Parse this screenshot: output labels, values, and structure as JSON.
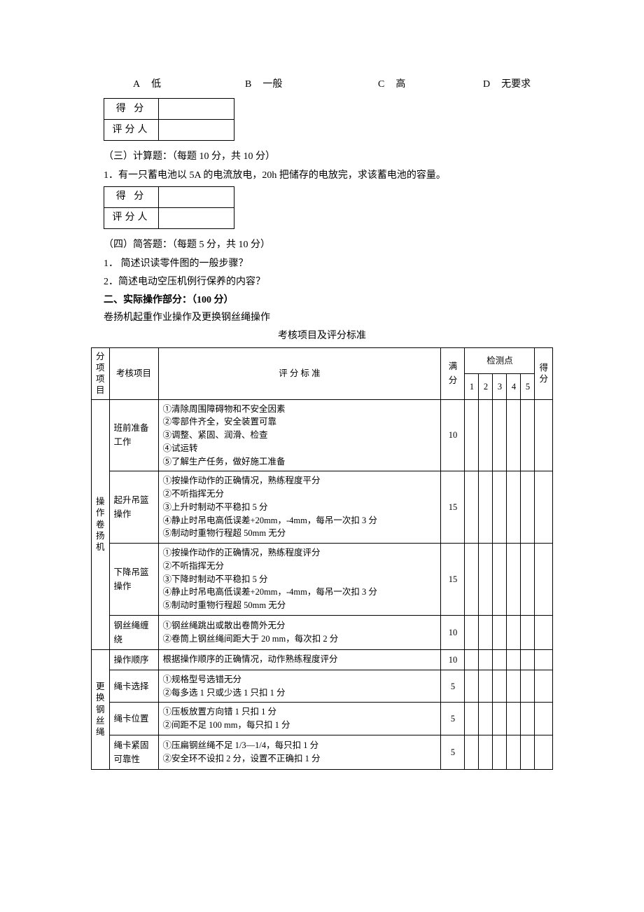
{
  "options": {
    "a_label": "A",
    "a_text": "低",
    "b_label": "B",
    "b_text": "一般",
    "c_label": "C",
    "c_text": "高",
    "d_label": "D",
    "d_text": "无要求"
  },
  "scoreTable": {
    "row1": "得  分",
    "row2": "评分人"
  },
  "section3": {
    "title": "（三）计算题：（每题 10 分，共 10 分）",
    "q1": "1．有一只蓄电池以 5A 的电流放电，20h 把储存的电放完，求该蓄电池的容量。"
  },
  "section4": {
    "title": "（四）简答题：（每题 5 分，共 10 分）",
    "q1": "1． 简述识读零件图的一般步骤？",
    "q2": "2．简述电动空压机例行保养的内容？"
  },
  "section2": {
    "title": "二、实际操作部分：（100 分）",
    "sub": "卷扬机起重作业操作及更换钢丝绳操作",
    "tableTitle": "考核项目及评分标准"
  },
  "headers": {
    "subItem": "分项项目",
    "project": "考核项目",
    "criteria": "评 分 标 准",
    "fullScore": "满分",
    "checkpoint": "检测点",
    "c1": "1",
    "c2": "2",
    "c3": "3",
    "c4": "4",
    "c5": "5",
    "finalScore": "得分"
  },
  "group1": {
    "name": "操作卷扬机",
    "rows": [
      {
        "project": "班前准备工作",
        "criteria": "①清除周围障碍物和不安全因素\n②零部件齐全，安全装置可靠\n③调整、紧固、润滑、检查\n④试运转\n⑤了解生产任务，做好施工准备",
        "score": "10"
      },
      {
        "project": "起升吊篮操作",
        "criteria": "①按操作动作的正确情况，熟练程度平分\n②不听指挥无分\n③上升时制动不平稳扣 5 分\n④静止时吊电高低误差+20mm，-4mm，每吊一次扣 3 分\n⑤制动时重物行程超 50mm 无分",
        "score": "15"
      },
      {
        "project": "下降吊篮操作",
        "criteria": "①按操作动作的正确情况，熟练程度评分\n②不听指挥无分\n③下降时制动不平稳扣 5 分\n④静止时吊电高低误差+20mm，-4mm，每吊一次扣 3 分\n⑤制动时重物行程超 50mm 无分",
        "score": "15"
      },
      {
        "project": "钢丝绳缠绕",
        "criteria": "①钢丝绳跳出或散出卷筒外无分\n②卷筒上钢丝绳间距大于 20 mm，每次扣 2 分",
        "score": "10"
      }
    ]
  },
  "group2": {
    "name": "更换钢丝绳",
    "rows": [
      {
        "project": "操作顺序",
        "criteria": "根据操作顺序的正确情况，动作熟练程度评分",
        "score": "10"
      },
      {
        "project": "绳卡选择",
        "criteria": "①规格型号选错无分\n②每多选 1 只或少选 1 只扣 1 分",
        "score": "5"
      },
      {
        "project": "绳卡位置",
        "criteria": "①压板放置方向错 1 只扣 1 分\n②间距不足 100 mm，每只扣 1 分",
        "score": "5"
      },
      {
        "project": "绳卡紧固可靠性",
        "criteria": "①压扁钢丝绳不足 1/3—1/4，每只扣 1 分\n②安全环不设扣 2 分，设置不正确扣 1 分",
        "score": "5"
      }
    ]
  }
}
